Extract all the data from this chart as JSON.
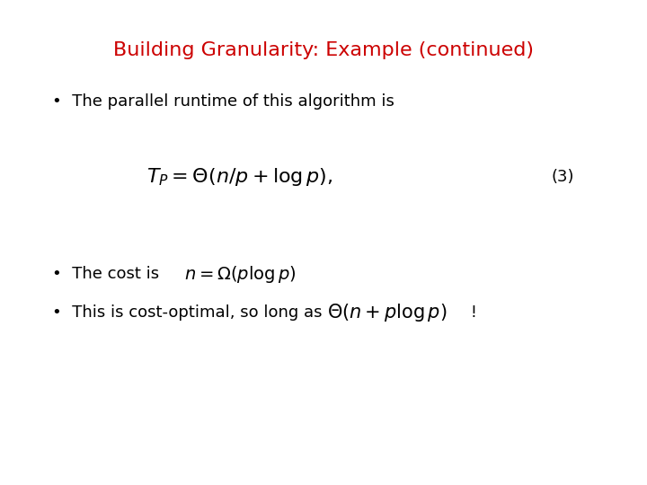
{
  "title": "Building Granularity: Example (continued)",
  "title_color": "#cc0000",
  "title_fontsize": 16,
  "bg_color": "#ffffff",
  "bullet_color": "#000000",
  "formula_color": "#000000",
  "bullet1_text": "The parallel runtime of this algorithm is",
  "bullet1_fontsize": 13,
  "formula1": "T_P = \\Theta(n/p + \\log p),",
  "formula1_fontsize": 16,
  "eq_number": "(3)",
  "eq_number_fontsize": 13,
  "bullet2_prefix": "The cost is",
  "bullet2_formula": "n = \\Omega(p \\log p)",
  "bullet2_fontsize": 13,
  "bullet2_formula_fontsize": 14,
  "bullet3_prefix": "This is cost-optimal, so long as",
  "bullet3_formula": "\\Theta(n + p \\log p)",
  "bullet3_suffix": " !",
  "bullet3_fontsize": 13,
  "bullet3_formula_fontsize": 15
}
